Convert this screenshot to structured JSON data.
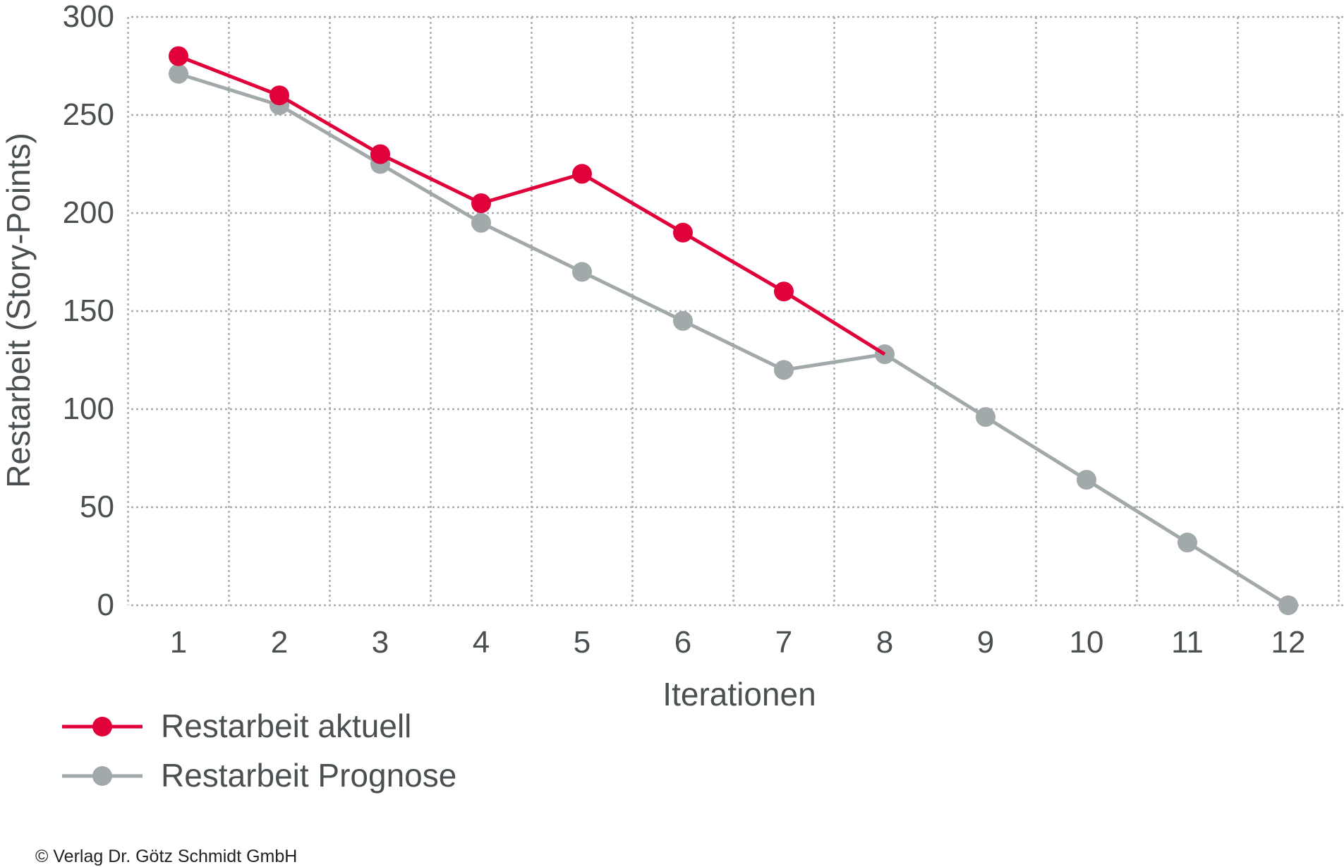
{
  "chart_data": {
    "type": "line",
    "title": "",
    "xlabel": "Iterationen",
    "ylabel": "Restarbeit (Story-Points)",
    "categories": [
      "1",
      "2",
      "3",
      "4",
      "5",
      "6",
      "7",
      "8",
      "9",
      "10",
      "11",
      "12"
    ],
    "yticks": [
      "0",
      "50",
      "100",
      "150",
      "200",
      "250",
      "300"
    ],
    "ylim": [
      0,
      300
    ],
    "grid": true,
    "legend_position": "bottom-left",
    "series": [
      {
        "name": "Restarbeit aktuell",
        "color": "#e0003a",
        "values": [
          280,
          260,
          230,
          205,
          220,
          190,
          160,
          128,
          null,
          null,
          null,
          null
        ],
        "markers": [
          true,
          true,
          true,
          true,
          true,
          true,
          true,
          false,
          false,
          false,
          false,
          false
        ]
      },
      {
        "name": "Restarbeit Prognose",
        "color": "#a2a9aa",
        "values": [
          271,
          255,
          225,
          195,
          170,
          145,
          120,
          128,
          96,
          64,
          32,
          0
        ],
        "markers": [
          true,
          true,
          true,
          true,
          true,
          true,
          true,
          true,
          true,
          true,
          true,
          true
        ]
      }
    ]
  },
  "copyright": "© Verlag Dr. Götz Schmidt GmbH"
}
